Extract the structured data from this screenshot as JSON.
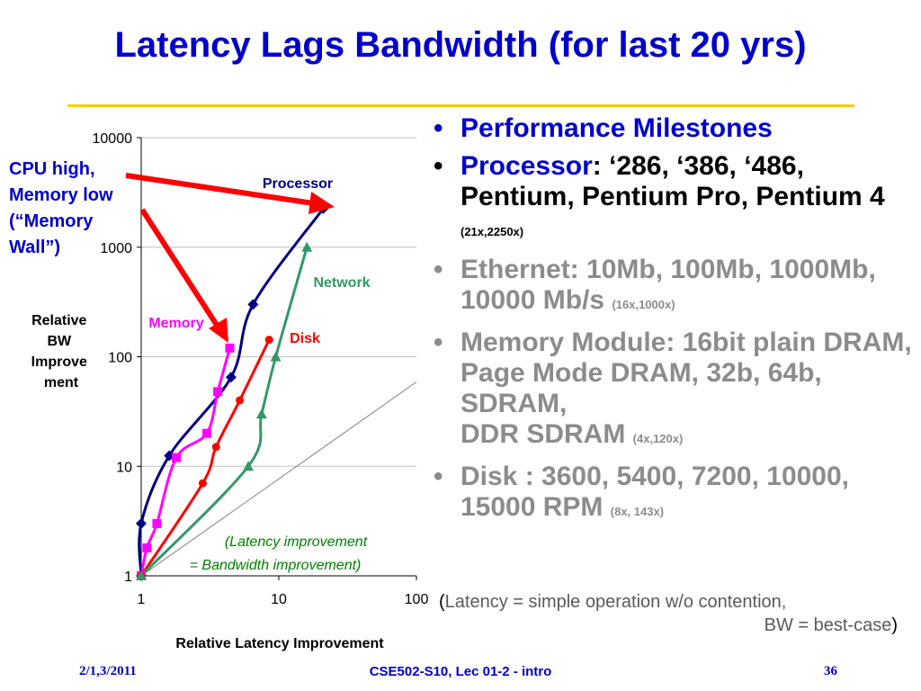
{
  "title": "Latency Lags Bandwidth (for last 20 yrs)",
  "colors": {
    "title": "#0000cc",
    "rule": "#ffcc00",
    "processor": "#000080",
    "memory": "#ff00ff",
    "disk": "#ff0000",
    "network": "#339966",
    "arrow": "#ff0000"
  },
  "chart_data": {
    "type": "line",
    "xlabel": "Relative Latency Improvement",
    "ylabel": "Relative BW Improve ment",
    "xscale": "log",
    "yscale": "log",
    "xlim": [
      1,
      100
    ],
    "ylim": [
      1,
      10000
    ],
    "x_ticks": [
      "1",
      "10",
      "100"
    ],
    "y_ticks": [
      "1",
      "10",
      "100",
      "1000",
      "10000"
    ],
    "grid": "horizontal",
    "series": [
      {
        "name": "Processor",
        "color": "#000080",
        "marker": "diamond",
        "points": [
          [
            1,
            1
          ],
          [
            1.0,
            3
          ],
          [
            1.6,
            12.5
          ],
          [
            4.5,
            65
          ],
          [
            6.5,
            300
          ],
          [
            21,
            2250
          ]
        ]
      },
      {
        "name": "Memory",
        "color": "#ff00ff",
        "marker": "square",
        "points": [
          [
            1,
            1
          ],
          [
            1.1,
            1.8
          ],
          [
            1.3,
            3
          ],
          [
            1.8,
            12
          ],
          [
            3,
            20
          ],
          [
            3.6,
            48
          ],
          [
            4.4,
            120
          ]
        ]
      },
      {
        "name": "Disk",
        "color": "#ff0000",
        "marker": "circle",
        "points": [
          [
            1,
            1
          ],
          [
            2.8,
            7
          ],
          [
            3.5,
            15
          ],
          [
            5.2,
            40
          ],
          [
            8.5,
            143
          ]
        ]
      },
      {
        "name": "Network",
        "color": "#339966",
        "marker": "triangle",
        "points": [
          [
            1,
            1
          ],
          [
            6,
            10
          ],
          [
            7.5,
            30
          ],
          [
            9.5,
            100
          ],
          [
            16,
            1000
          ]
        ]
      }
    ],
    "reference_line": {
      "label": "(Latency improvement\n= Bandwidth improvement)",
      "points": [
        [
          1,
          1
        ],
        [
          100,
          100
        ]
      ]
    },
    "labels": {
      "processor": "Processor",
      "network": "Network",
      "memory": "Memory",
      "disk": "Disk",
      "reference_line_1": "(Latency improvement",
      "reference_line_2": "= Bandwidth improvement)"
    }
  },
  "side_label": {
    "line1": "CPU high,",
    "line2": "Memory low",
    "line3": "(“Memory",
    "line4": "Wall”)"
  },
  "bullets": {
    "b1": "Performance Milestones",
    "b2_bold": "Processor",
    "b2_text": ": ‘286, ‘386, ‘486, Pentium, Pentium Pro, Pentium 4",
    "b2_small": "(21x,2250x)",
    "b3_text": "Ethernet: 10Mb, 100Mb, 1000Mb, 10000 Mb/s",
    "b3_small": "(16x,1000x)",
    "b4_text": "Memory Module: 16bit plain DRAM, Page Mode DRAM, 32b, 64b, SDRAM,",
    "b4_text2": "DDR SDRAM",
    "b4_small": "(4x,120x)",
    "b5_text": "Disk : 3600, 5400, 7200, 10000, 15000 RPM",
    "b5_small": "(8x, 143x)",
    "bullet_char": "•"
  },
  "note": {
    "line1": "Latency = simple operation w/o contention,",
    "line2": "BW = best-case",
    "open": "(",
    "close": ")"
  },
  "footer": {
    "left": "2/1,3/2011",
    "center": "CSE502-S10, Lec 01-2 - intro",
    "right": "36"
  }
}
